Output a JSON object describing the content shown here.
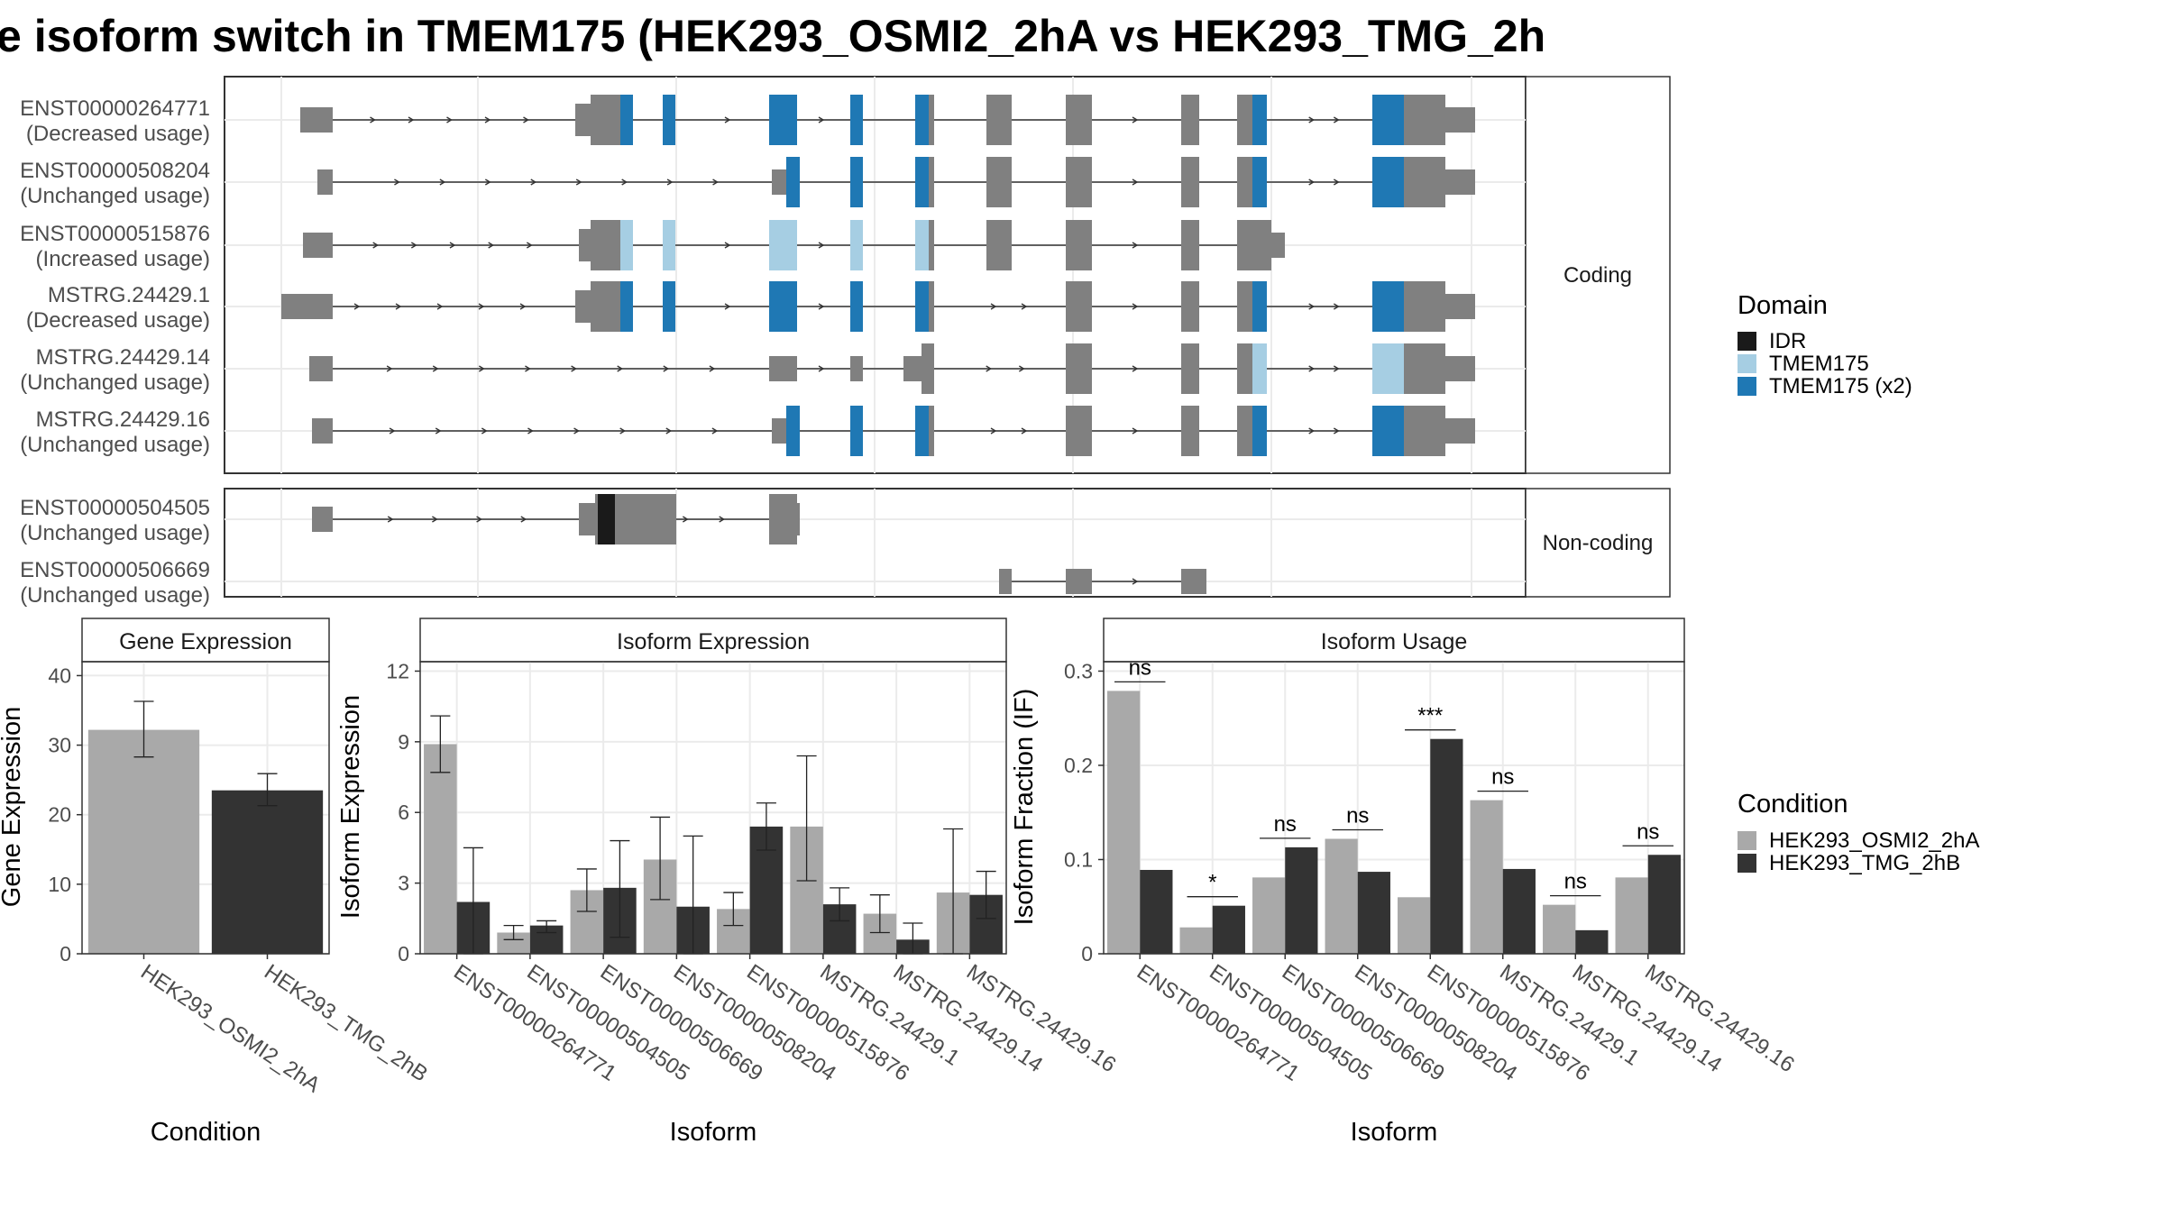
{
  "title": "e isoform switch in TMEM175 (HEK293_OSMI2_2hA vs HEK293_TMG_2h",
  "colors": {
    "idr": "#1a1a1a",
    "tmem175": "#a6cee3",
    "tmem175_x2": "#1f78b4",
    "exon": "#808080",
    "cond_a": "#a9a9a9",
    "cond_b": "#333333"
  },
  "structure": {
    "strips": {
      "coding": "Coding",
      "noncoding": "Non-coding"
    },
    "domain_legend": {
      "title": "Domain",
      "items": [
        {
          "label": "IDR",
          "color": "#1a1a1a"
        },
        {
          "label": "TMEM175",
          "color": "#a6cee3"
        },
        {
          "label": "TMEM175 (x2)",
          "color": "#1f78b4"
        }
      ]
    },
    "transcripts": [
      {
        "group": "coding",
        "id": "ENST00000264771",
        "usage": "(Decreased usage)"
      },
      {
        "group": "coding",
        "id": "ENST00000508204",
        "usage": "(Unchanged usage)"
      },
      {
        "group": "coding",
        "id": "ENST00000515876",
        "usage": "(Increased usage)"
      },
      {
        "group": "coding",
        "id": "MSTRG.24429.1",
        "usage": "(Decreased usage)"
      },
      {
        "group": "coding",
        "id": "MSTRG.24429.14",
        "usage": "(Unchanged usage)"
      },
      {
        "group": "coding",
        "id": "MSTRG.24429.16",
        "usage": "(Unchanged usage)"
      },
      {
        "group": "noncoding",
        "id": "ENST00000504505",
        "usage": "(Unchanged usage)"
      },
      {
        "group": "noncoding",
        "id": "ENST00000506669",
        "usage": "(Unchanged usage)"
      }
    ]
  },
  "condition_legend": {
    "title": "Condition",
    "items": [
      {
        "label": "HEK293_OSMI2_2hA",
        "color": "#a9a9a9"
      },
      {
        "label": "HEK293_TMG_2hB",
        "color": "#333333"
      }
    ]
  },
  "chart_data": [
    {
      "type": "bar",
      "panel": "Gene Expression",
      "xlabel": "Condition",
      "ylabel": "Gene Expression",
      "ylim": [
        0,
        42
      ],
      "yticks": [
        0,
        10,
        20,
        30,
        40
      ],
      "categories": [
        "HEK293_OSMI2_2hA",
        "HEK293_TMG_2hB"
      ],
      "values": [
        32.2,
        23.5
      ],
      "err_low": [
        28.3,
        21.3
      ],
      "err_high": [
        36.3,
        25.9
      ]
    },
    {
      "type": "bar",
      "panel": "Isoform Expression",
      "xlabel": "Isoform",
      "ylabel": "Isoform Expression",
      "ylim": [
        0,
        12.4
      ],
      "yticks": [
        0,
        3,
        6,
        9,
        12
      ],
      "categories": [
        "ENST00000264771",
        "ENST00000504505",
        "ENST00000506669",
        "ENST00000508204",
        "ENST00000515876",
        "MSTRG.24429.1",
        "MSTRG.24429.14",
        "MSTRG.24429.16"
      ],
      "series": [
        {
          "name": "HEK293_OSMI2_2hA",
          "values": [
            8.9,
            0.9,
            2.7,
            4.0,
            1.9,
            5.4,
            1.7,
            2.6
          ],
          "err_low": [
            7.7,
            0.6,
            1.8,
            2.3,
            1.2,
            3.1,
            0.9,
            0.0
          ],
          "err_high": [
            10.1,
            1.2,
            3.6,
            5.8,
            2.6,
            8.4,
            2.5,
            5.3
          ]
        },
        {
          "name": "HEK293_TMG_2hB",
          "values": [
            2.2,
            1.2,
            2.8,
            2.0,
            5.4,
            2.1,
            0.6,
            2.5
          ],
          "err_low": [
            0.0,
            0.9,
            0.7,
            0.0,
            4.4,
            1.4,
            0.0,
            1.5
          ],
          "err_high": [
            4.5,
            1.4,
            4.8,
            5.0,
            6.4,
            2.8,
            1.3,
            3.5
          ]
        }
      ]
    },
    {
      "type": "bar",
      "panel": "Isoform Usage",
      "xlabel": "Isoform",
      "ylabel": "Isoform Fraction (IF)",
      "ylim": [
        0,
        0.31
      ],
      "yticks": [
        0.0,
        0.1,
        0.2,
        0.3
      ],
      "categories": [
        "ENST00000264771",
        "ENST00000504505",
        "ENST00000506669",
        "ENST00000508204",
        "ENST00000515876",
        "MSTRG.24429.1",
        "MSTRG.24429.14",
        "MSTRG.24429.16"
      ],
      "series": [
        {
          "name": "HEK293_OSMI2_2hA",
          "values": [
            0.279,
            0.028,
            0.081,
            0.122,
            0.06,
            0.163,
            0.052,
            0.081
          ]
        },
        {
          "name": "HEK293_TMG_2hB",
          "values": [
            0.089,
            0.051,
            0.113,
            0.087,
            0.228,
            0.09,
            0.025,
            0.105
          ]
        }
      ],
      "significance": [
        "ns",
        "*",
        "ns",
        "ns",
        "***",
        "ns",
        "ns",
        "ns"
      ]
    }
  ]
}
